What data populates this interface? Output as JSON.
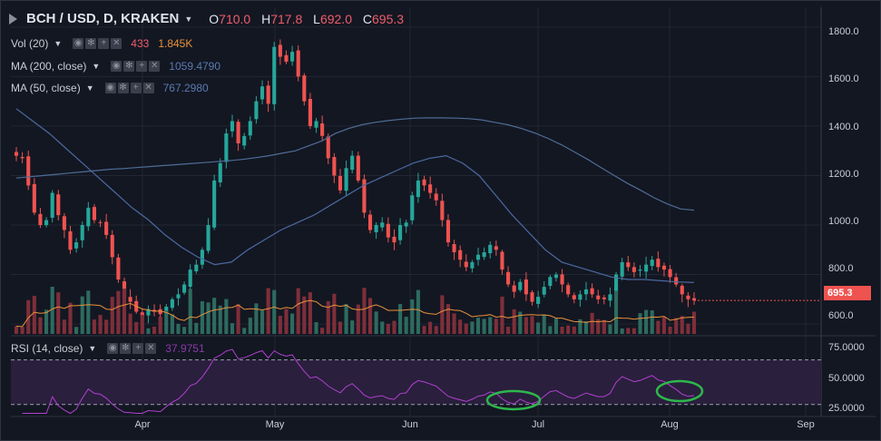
{
  "header": {
    "symbol": "BCH / USD, D, KRAKEN",
    "open_label": "O",
    "open": "710.0",
    "high_label": "H",
    "high": "717.8",
    "low_label": "L",
    "low": "692.0",
    "close_label": "C",
    "close": "695.3"
  },
  "indicators": {
    "vol": {
      "label": "Vol (20)",
      "value1": "433",
      "value2": "1.845K"
    },
    "ma200": {
      "label": "MA (200, close)",
      "value": "1059.4790"
    },
    "ma50": {
      "label": "MA (50, close)",
      "value": "767.2980"
    },
    "rsi": {
      "label": "RSI (14, close)",
      "value": "37.9751"
    }
  },
  "price_tag": "695.3",
  "colors": {
    "background": "#131722",
    "up": "#26a69a",
    "down": "#ef5350",
    "vol_up": "#2d6b5f",
    "vol_down": "#7e2f3a",
    "ma200": "#4f6c96",
    "ma50": "#4a6aa0",
    "vol_ma": "#e8913a",
    "rsi_line": "#b040d0",
    "rsi_band": "#2a1f3d",
    "annotation": "#2db84b"
  },
  "chart_data": [
    {
      "type": "candlestick",
      "title": "BCH / USD, D, KRAKEN",
      "x_tick_labels": [
        "Apr",
        "May",
        "Jun",
        "Jul",
        "Aug",
        "Sep"
      ],
      "y_tick_labels": [
        "1800.0",
        "1600.0",
        "1400.0",
        "1200.0",
        "1000.0",
        "800.0",
        "600.0"
      ],
      "ylim": [
        560,
        1880
      ],
      "last_price": 695.3,
      "closes": [
        1280,
        1270,
        1160,
        1050,
        1000,
        1020,
        1130,
        1040,
        980,
        900,
        930,
        1000,
        1070,
        1020,
        1010,
        960,
        870,
        780,
        700,
        690,
        650,
        630,
        660,
        650,
        640,
        670,
        700,
        720,
        760,
        820,
        840,
        900,
        1000,
        1180,
        1250,
        1370,
        1420,
        1330,
        1360,
        1420,
        1500,
        1560,
        1490,
        1720,
        1680,
        1660,
        1700,
        1600,
        1500,
        1400,
        1420,
        1360,
        1270,
        1200,
        1140,
        1230,
        1280,
        1180,
        1050,
        980,
        1000,
        1010,
        950,
        930,
        1000,
        1010,
        1120,
        1180,
        1160,
        1130,
        1100,
        1020,
        930,
        890,
        860,
        830,
        850,
        880,
        890,
        920,
        900,
        820,
        760,
        730,
        770,
        720,
        690,
        710,
        750,
        790,
        800,
        760,
        720,
        700,
        720,
        740,
        720,
        700,
        700,
        720,
        800,
        850,
        830,
        810,
        820,
        840,
        860,
        830,
        820,
        790,
        760,
        720,
        700,
        695.3
      ],
      "ma200": [
        1190,
        1195,
        1200,
        1205,
        1210,
        1215,
        1220,
        1225,
        1228,
        1232,
        1236,
        1240,
        1244,
        1248,
        1252,
        1256,
        1260,
        1265,
        1272,
        1280,
        1290,
        1300,
        1320,
        1340,
        1370,
        1390,
        1405,
        1415,
        1422,
        1428,
        1432,
        1433,
        1433,
        1432,
        1430,
        1425,
        1415,
        1405,
        1390,
        1372,
        1350,
        1325,
        1295,
        1265,
        1232,
        1200,
        1168,
        1140,
        1110,
        1085,
        1065,
        1060
      ],
      "ma50": [
        1470,
        1420,
        1370,
        1310,
        1250,
        1190,
        1130,
        1070,
        1020,
        960,
        910,
        870,
        840,
        850,
        900,
        940,
        980,
        1010,
        1040,
        1080,
        1120,
        1160,
        1190,
        1220,
        1250,
        1270,
        1280,
        1250,
        1200,
        1120,
        1040,
        970,
        900,
        850,
        830,
        810,
        790,
        780,
        780,
        775,
        770,
        768
      ],
      "rsi": {
        "ylim": [
          20,
          90
        ],
        "y_tick_labels": [
          "75.0000",
          "50.0000",
          "25.0000"
        ],
        "upper": 70,
        "lower": 30,
        "last": 37.9751
      },
      "volume_ma_label": "Vol (20)"
    }
  ]
}
